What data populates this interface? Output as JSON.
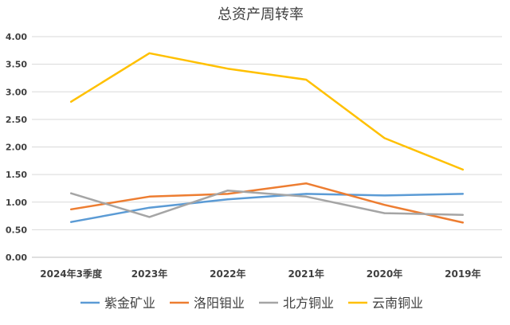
{
  "chart_data": {
    "type": "line",
    "title": "总资产周转率",
    "xlabel": "",
    "ylabel": "",
    "categories": [
      "2024年3季度",
      "2023年",
      "2022年",
      "2021年",
      "2020年",
      "2019年"
    ],
    "ylim": [
      0,
      4
    ],
    "ytick_labels": [
      "0.00",
      "0.50",
      "1.00",
      "1.50",
      "2.00",
      "2.50",
      "3.00",
      "3.50",
      "4.00"
    ],
    "grid": true,
    "legend_position": "bottom",
    "series": [
      {
        "name": "紫金矿业",
        "color": "#5B9BD5",
        "values": [
          0.64,
          0.9,
          1.05,
          1.15,
          1.12,
          1.15
        ]
      },
      {
        "name": "洛阳钼业",
        "color": "#ED7D31",
        "values": [
          0.87,
          1.1,
          1.15,
          1.34,
          0.95,
          0.63
        ]
      },
      {
        "name": "北方铜业",
        "color": "#A5A5A5",
        "values": [
          1.16,
          0.73,
          1.21,
          1.1,
          0.8,
          0.77
        ]
      },
      {
        "name": "云南铜业",
        "color": "#FFC000",
        "values": [
          2.82,
          3.7,
          3.42,
          3.22,
          2.16,
          1.59
        ]
      }
    ]
  }
}
